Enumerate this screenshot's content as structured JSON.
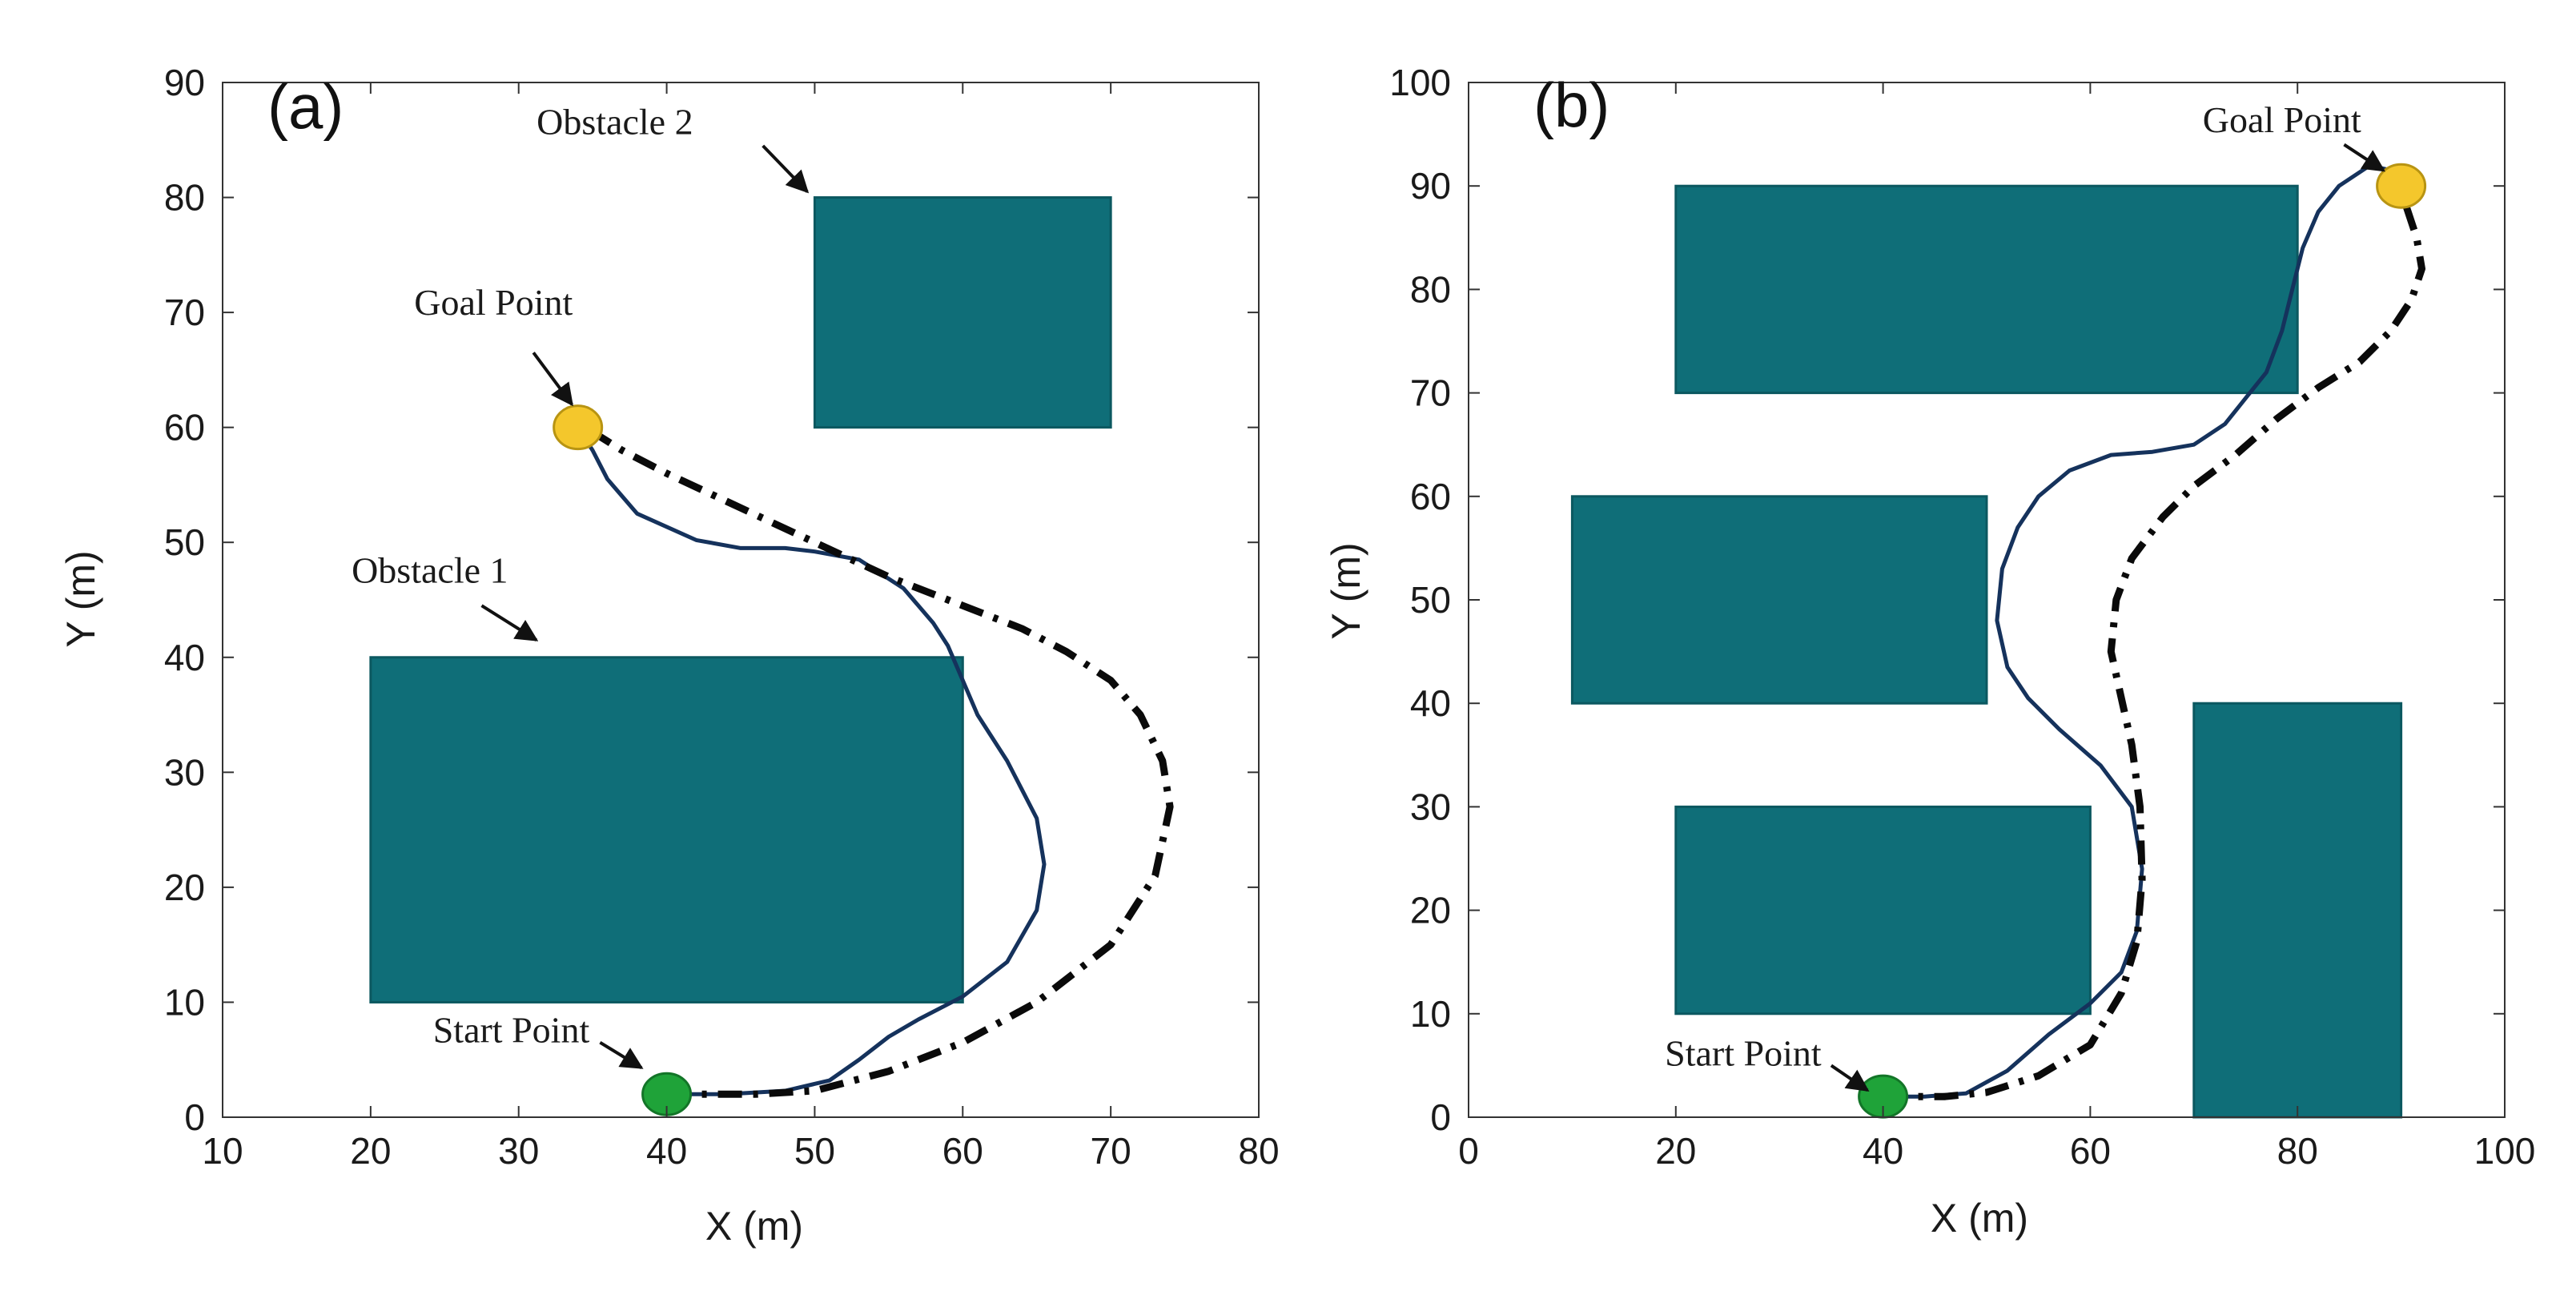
{
  "colors": {
    "obstacle": "#0f6e78",
    "obstacle_edge": "#0b5860",
    "path_solid": "#15325c",
    "path_dashed": "#0a0a0a",
    "start": "#1fa339",
    "goal": "#f4c72c",
    "goal_edge": "#b89412",
    "axis": "#333333"
  },
  "chart_data": [
    {
      "type": "line",
      "panel_label": "(a)",
      "xlabel": "X (m)",
      "ylabel": "Y (m)",
      "xlim": [
        10,
        80
      ],
      "ylim": [
        0,
        90
      ],
      "xticks": [
        10,
        20,
        30,
        40,
        50,
        60,
        70,
        80
      ],
      "yticks": [
        0,
        10,
        20,
        30,
        40,
        50,
        60,
        70,
        80,
        90
      ],
      "obstacles": [
        {
          "name": "Obstacle 1",
          "x": [
            20,
            60
          ],
          "y": [
            10,
            40
          ]
        },
        {
          "name": "Obstacle 2",
          "x": [
            50,
            70
          ],
          "y": [
            60,
            80
          ]
        }
      ],
      "start": {
        "label": "Start Point",
        "x": 40,
        "y": 2
      },
      "goal": {
        "label": "Goal Point",
        "x": 34,
        "y": 60
      },
      "annotations": [
        {
          "text": "Obstacle 2",
          "x": 36.5,
          "y": 85.5,
          "ax": 46.5,
          "ay": 84.5,
          "hx": 49.5,
          "hy": 80.5
        },
        {
          "text": "Goal Point",
          "x": 28.3,
          "y": 69.8,
          "ax": 31.0,
          "ay": 66.5,
          "hx": 33.6,
          "hy": 62.0
        },
        {
          "text": "Obstacle 1",
          "x": 24.0,
          "y": 46.5,
          "ax": 27.5,
          "ay": 44.5,
          "hx": 31.2,
          "hy": 41.5
        },
        {
          "text": "Start Point",
          "x": 29.5,
          "y": 6.5,
          "ax": 35.5,
          "ay": 6.5,
          "hx": 38.3,
          "hy": 4.3
        }
      ],
      "series": [
        {
          "name": "solid",
          "style": "solid",
          "x": [
            40,
            44,
            48,
            51,
            53,
            55,
            57,
            60,
            63,
            65,
            65.5,
            65,
            63,
            61,
            60,
            59,
            58,
            56,
            53,
            50,
            48,
            45,
            42,
            38,
            36,
            35,
            34
          ],
          "y": [
            2,
            2,
            2.3,
            3.2,
            5,
            7,
            8.5,
            10.5,
            13.5,
            18,
            22,
            26,
            31,
            35,
            38,
            41,
            43,
            46,
            48.5,
            49.2,
            49.5,
            49.5,
            50.2,
            52.5,
            55.5,
            58,
            60
          ]
        },
        {
          "name": "dashed",
          "style": "dashdot",
          "x": [
            40,
            46,
            50,
            55,
            60,
            65,
            70,
            73,
            74,
            73.5,
            72,
            70,
            67,
            64,
            60,
            55,
            50,
            45,
            40,
            37,
            35.5,
            34
          ],
          "y": [
            2,
            2,
            2.3,
            4,
            6.5,
            10,
            15,
            21,
            27,
            31,
            35,
            38,
            40.5,
            42.5,
            44.5,
            47,
            50,
            53,
            56,
            58,
            59.2,
            60
          ]
        }
      ]
    },
    {
      "type": "line",
      "panel_label": "(b)",
      "xlabel": "X (m)",
      "ylabel": "Y (m)",
      "xlim": [
        0,
        100
      ],
      "ylim": [
        0,
        100
      ],
      "xticks": [
        0,
        20,
        40,
        60,
        80,
        100
      ],
      "yticks": [
        0,
        10,
        20,
        30,
        40,
        50,
        60,
        70,
        80,
        90,
        100
      ],
      "obstacles": [
        {
          "name": "top",
          "x": [
            20,
            80
          ],
          "y": [
            70,
            90
          ]
        },
        {
          "name": "middle-left",
          "x": [
            10,
            50
          ],
          "y": [
            40,
            60
          ]
        },
        {
          "name": "bottom-left",
          "x": [
            20,
            60
          ],
          "y": [
            10,
            30
          ]
        },
        {
          "name": "bottom-right",
          "x": [
            70,
            90
          ],
          "y": [
            0,
            40
          ]
        }
      ],
      "start": {
        "label": "Start Point",
        "x": 40,
        "y": 2
      },
      "goal": {
        "label": "Goal Point",
        "x": 90,
        "y": 90
      },
      "annotations": [
        {
          "text": "Start Point",
          "x": 26.5,
          "y": 5.0,
          "ax": 35.0,
          "ay": 5.0,
          "hx": 38.5,
          "hy": 2.6
        },
        {
          "text": "Goal Point",
          "x": 78.5,
          "y": 95.2,
          "ax": 84.5,
          "ay": 94.0,
          "hx": 88.3,
          "hy": 91.5
        }
      ],
      "series": [
        {
          "name": "solid",
          "style": "solid",
          "x": [
            40,
            44,
            48,
            52,
            56,
            60,
            63,
            64.5,
            65,
            64,
            61,
            57,
            54,
            52,
            51,
            51.5,
            53,
            55,
            58,
            62,
            66,
            70,
            73,
            75,
            77,
            78.5,
            79.5,
            80.5,
            82,
            84,
            87,
            89,
            90
          ],
          "y": [
            2,
            2,
            2.3,
            4.5,
            8,
            11,
            14,
            18,
            24,
            30,
            34,
            37.5,
            40.5,
            43.5,
            48,
            53,
            57,
            60,
            62.5,
            64,
            64.3,
            65,
            67,
            69.5,
            72,
            76,
            80,
            84,
            87.5,
            90,
            92,
            91.5,
            90
          ]
        },
        {
          "name": "dashed",
          "style": "dashdot",
          "x": [
            40,
            46,
            50,
            55,
            60,
            63,
            64.5,
            65,
            64.8,
            64,
            63,
            62,
            62.5,
            64,
            67,
            70,
            74,
            78,
            82,
            86,
            89,
            91,
            92,
            91.5,
            90.5,
            90
          ],
          "y": [
            2,
            2,
            2.4,
            4,
            7,
            12,
            17,
            23,
            30,
            36,
            40.5,
            45,
            50,
            54,
            58,
            61,
            64,
            67.5,
            70.5,
            73,
            76,
            79,
            82,
            85,
            88,
            90
          ]
        }
      ]
    }
  ]
}
